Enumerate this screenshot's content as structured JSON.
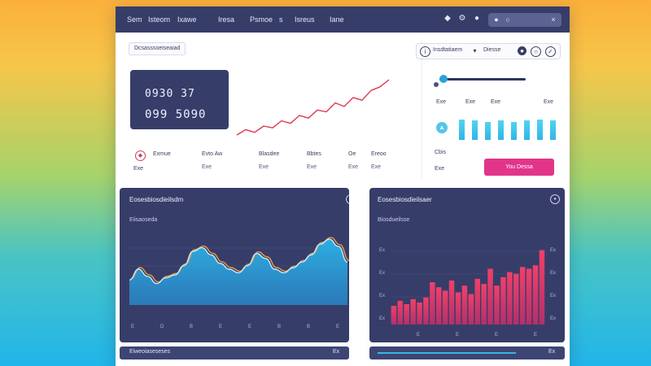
{
  "nav": {
    "items": [
      {
        "label": "Sem"
      },
      {
        "label": "Isteom"
      },
      {
        "label": "Ixawe"
      },
      {
        "label": "Iresa"
      },
      {
        "label": "Psmoe"
      },
      {
        "label": "s"
      },
      {
        "label": "Isreus"
      },
      {
        "label": "Iane"
      }
    ],
    "icons": [
      "bell-icon",
      "settings-icon",
      "user-icon"
    ],
    "search_icons": [
      "search-icon",
      "close-icon"
    ]
  },
  "overview": {
    "subtitle": "Dcsasssoeiseaiad",
    "kpi_primary": "0930 37",
    "kpi_secondary": "099 5090",
    "metrics": [
      {
        "label": "Exmue",
        "value": "Exe"
      },
      {
        "label": "Evto Aw",
        "value": "Exe"
      },
      {
        "label": "Blasdee",
        "value": "Exe"
      },
      {
        "label": "Bbtes",
        "value": "Exe"
      },
      {
        "label": "Oe",
        "value": "Exe"
      },
      {
        "label": "Ereoo",
        "value": "Exe"
      }
    ]
  },
  "side_panel": {
    "filter_text": "Insdtatiaem",
    "filter_sub": "Diesse",
    "slider_value": 0.05,
    "labels": [
      "Exe",
      "Exe",
      "Exe",
      "Exe",
      "Cbis",
      "Exe"
    ],
    "bar_levels": [
      0.9,
      0.85,
      0.8,
      0.85,
      0.8,
      0.85,
      0.9,
      0.85
    ],
    "cta_label": "You Dessa",
    "accent": "#e2358a"
  },
  "panel_left": {
    "title": "Eosesbiosdieilsdm",
    "subtitle": "Eiisaoseda",
    "x_ticks": [
      "E",
      "D",
      "B",
      "E",
      "E",
      "B",
      "B",
      "E"
    ],
    "footer": "Eiweoiaseseses",
    "footer_right": "Ex"
  },
  "panel_right": {
    "title": "Eosesbiosdieilsaer",
    "subtitle": "Biosdueilsse",
    "y_ticks": [
      "Ex",
      "Ex",
      "Ex",
      "Ex"
    ],
    "y_ticks_right": [
      "Ex",
      "Ex",
      "Ex",
      "Ex"
    ],
    "x_ticks": [
      "E",
      "E",
      "E",
      "E"
    ],
    "footer_right": "Ex"
  },
  "chart_data": [
    {
      "type": "line",
      "series": [
        {
          "values": [
            8,
            14,
            11,
            18,
            16,
            24,
            21,
            30,
            27,
            36,
            34,
            44,
            40,
            50,
            47,
            58,
            62,
            70
          ]
        }
      ]
    },
    {
      "type": "area",
      "x": [
        1,
        2,
        3,
        4,
        5,
        6,
        7,
        8,
        9,
        10,
        11,
        12,
        13,
        14,
        15,
        16,
        17,
        18,
        19,
        20,
        21,
        22,
        23,
        24,
        25
      ],
      "series": [
        {
          "values": [
            35,
            50,
            40,
            30,
            38,
            42,
            55,
            75,
            80,
            70,
            58,
            50,
            45,
            55,
            72,
            65,
            50,
            45,
            52,
            60,
            70,
            85,
            92,
            82,
            60
          ]
        }
      ],
      "ylim": [
        0,
        100
      ]
    },
    {
      "type": "bar",
      "categories": [
        "1",
        "2",
        "3",
        "4",
        "5",
        "6",
        "7",
        "8",
        "9",
        "10",
        "11",
        "12",
        "13",
        "14",
        "15",
        "16",
        "17",
        "18",
        "19",
        "20",
        "21",
        "22",
        "23",
        "24"
      ],
      "series": [
        {
          "values": [
            22,
            28,
            24,
            30,
            26,
            32,
            50,
            44,
            40,
            52,
            38,
            46,
            36,
            54,
            48,
            66,
            46,
            56,
            62,
            60,
            68,
            66,
            70,
            88
          ]
        }
      ],
      "ylim": [
        0,
        100
      ]
    }
  ]
}
